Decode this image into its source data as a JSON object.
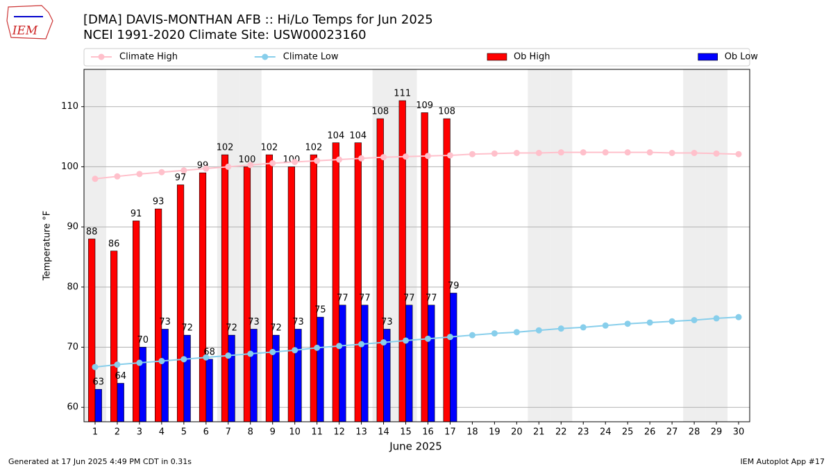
{
  "logo": "IEM",
  "footer": {
    "left": "Generated at 17 Jun 2025 4:49 PM CDT in 0.31s",
    "right": "IEM Autoplot App #17"
  },
  "chart_data": {
    "type": "bar",
    "title": "[DMA] DAVIS-MONTHAN AFB :: Hi/Lo Temps for Jun 2025",
    "subtitle": "NCEI 1991-2020 Climate Site: USW00023160",
    "x_label": "June 2025",
    "y_label": "Temperature °F",
    "x": [
      1,
      2,
      3,
      4,
      5,
      6,
      7,
      8,
      9,
      10,
      11,
      12,
      13,
      14,
      15,
      16,
      17,
      18,
      19,
      20,
      21,
      22,
      23,
      24,
      25,
      26,
      27,
      28,
      29,
      30
    ],
    "xlim": [
      0.5,
      30.5
    ],
    "xticks": [
      1,
      2,
      3,
      4,
      5,
      6,
      7,
      8,
      9,
      10,
      11,
      12,
      13,
      14,
      15,
      16,
      17,
      18,
      19,
      20,
      21,
      22,
      23,
      24,
      25,
      26,
      27,
      28,
      29,
      30
    ],
    "ylim": [
      57.6,
      116.2
    ],
    "yticks": [
      60,
      70,
      80,
      90,
      100,
      110
    ],
    "grid": true,
    "legend": "top",
    "shaded_days": [
      1,
      7,
      8,
      14,
      15,
      21,
      22,
      28,
      29
    ],
    "shade_color": "#eeeeee",
    "series": [
      {
        "name": "Climate High",
        "type": "line",
        "color": "#ffc0cb",
        "values": [
          98.0,
          98.4,
          98.8,
          99.1,
          99.4,
          99.7,
          100.0,
          100.3,
          100.6,
          100.8,
          101.0,
          101.2,
          101.4,
          101.6,
          101.7,
          101.8,
          101.9,
          102.1,
          102.2,
          102.3,
          102.3,
          102.4,
          102.4,
          102.4,
          102.4,
          102.4,
          102.3,
          102.3,
          102.2,
          102.1
        ]
      },
      {
        "name": "Climate Low",
        "type": "line",
        "color": "#87ceeb",
        "values": [
          66.7,
          67.1,
          67.4,
          67.7,
          68.0,
          68.3,
          68.6,
          68.9,
          69.2,
          69.5,
          69.9,
          70.2,
          70.5,
          70.8,
          71.1,
          71.4,
          71.7,
          72.0,
          72.3,
          72.5,
          72.8,
          73.1,
          73.3,
          73.6,
          73.9,
          74.1,
          74.3,
          74.5,
          74.8,
          75.0
        ]
      },
      {
        "name": "Ob High",
        "type": "bar",
        "color": "#ff0000",
        "values": [
          88,
          86,
          91,
          93,
          97,
          99,
          102,
          100,
          102,
          100,
          102,
          104,
          104,
          108,
          111,
          109,
          108,
          null,
          null,
          null,
          null,
          null,
          null,
          null,
          null,
          null,
          null,
          null,
          null,
          null
        ]
      },
      {
        "name": "Ob Low",
        "type": "bar",
        "color": "#0000ff",
        "values": [
          63,
          64,
          70,
          73,
          72,
          68,
          72,
          73,
          72,
          73,
          75,
          77,
          77,
          73,
          77,
          77,
          79,
          null,
          null,
          null,
          null,
          null,
          null,
          null,
          null,
          null,
          null,
          null,
          null,
          null
        ]
      }
    ]
  }
}
